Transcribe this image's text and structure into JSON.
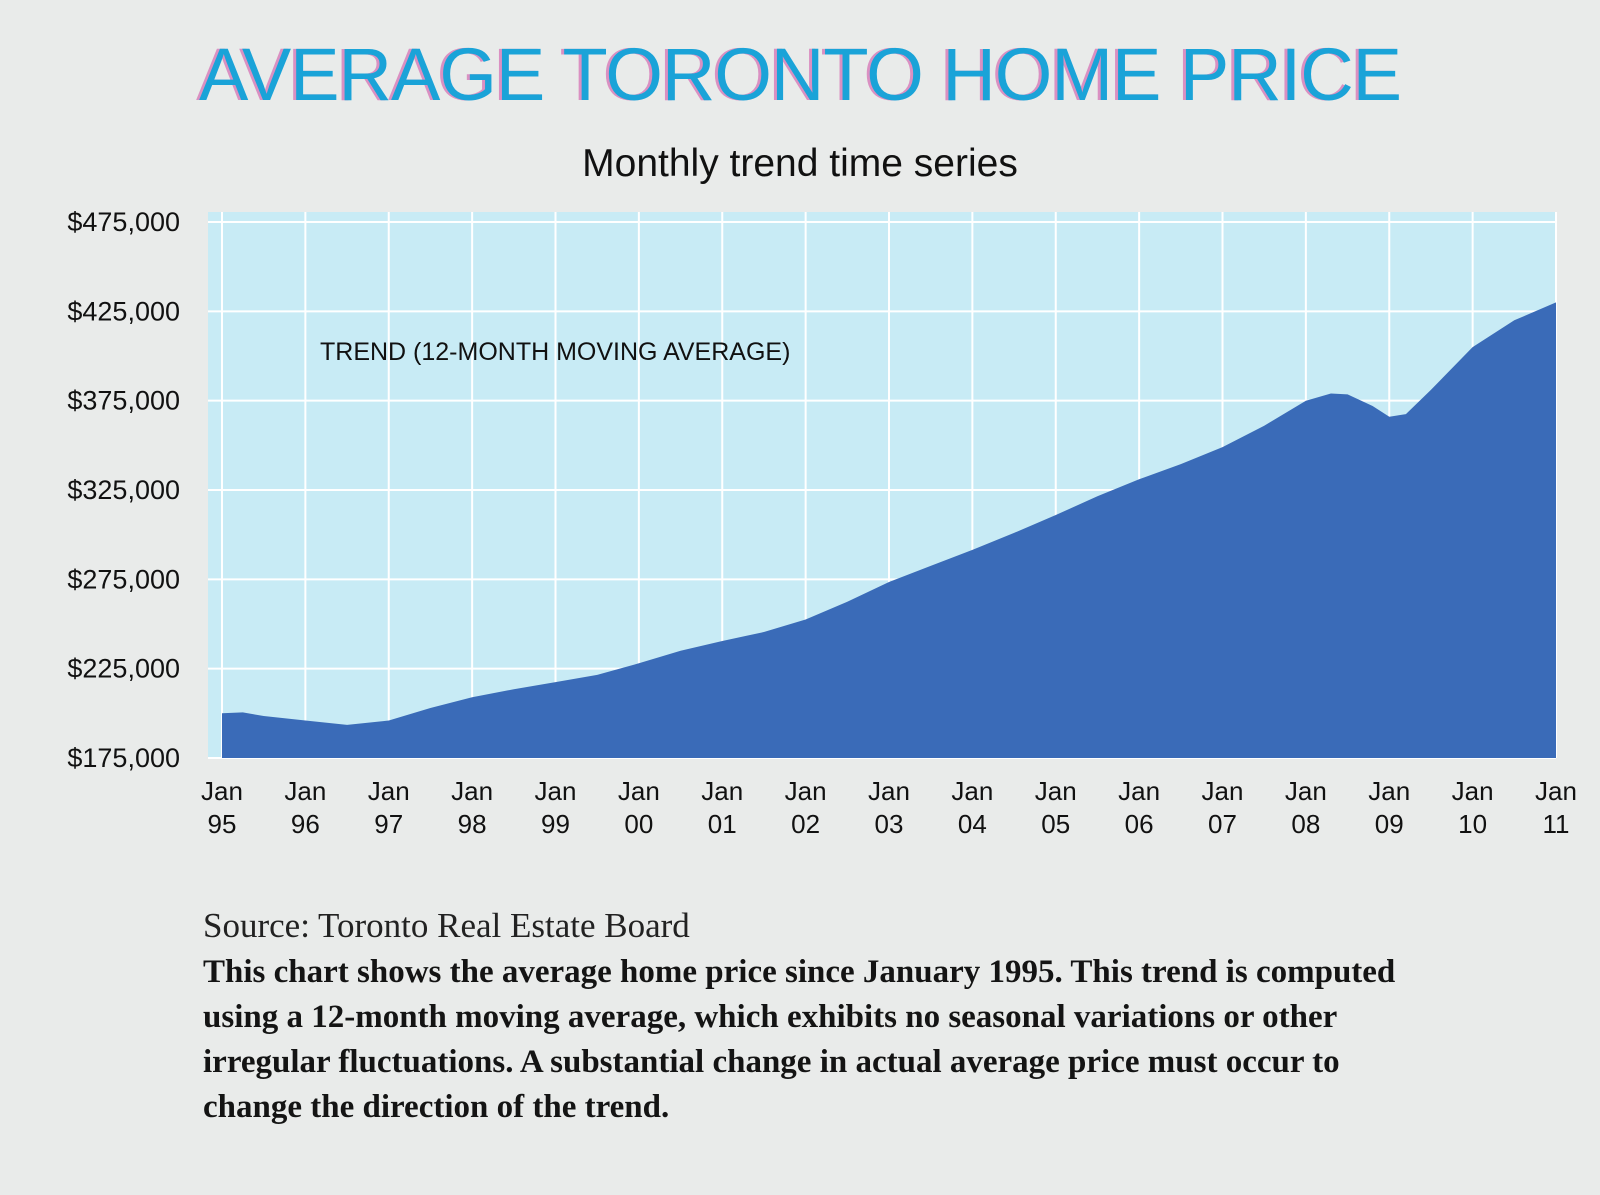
{
  "chart_data": {
    "type": "area",
    "title": "AVERAGE TORONTO HOME PRICE",
    "subtitle": "Monthly trend time series",
    "annotation": "TREND (12-MONTH MOVING AVERAGE)",
    "ylim": [
      175000,
      475000
    ],
    "yticks": [
      {
        "value": 475000,
        "label": "$475,000"
      },
      {
        "value": 425000,
        "label": "$425,000"
      },
      {
        "value": 375000,
        "label": "$375,000"
      },
      {
        "value": 325000,
        "label": "$325,000"
      },
      {
        "value": 275000,
        "label": "$275,000"
      },
      {
        "value": 225000,
        "label": "$225,000"
      },
      {
        "value": 175000,
        "label": "$175,000"
      }
    ],
    "xlim": [
      1995.0,
      2011.0
    ],
    "xticks": [
      {
        "value": 1995,
        "month": "Jan",
        "year": "95"
      },
      {
        "value": 1996,
        "month": "Jan",
        "year": "96"
      },
      {
        "value": 1997,
        "month": "Jan",
        "year": "97"
      },
      {
        "value": 1998,
        "month": "Jan",
        "year": "98"
      },
      {
        "value": 1999,
        "month": "Jan",
        "year": "99"
      },
      {
        "value": 2000,
        "month": "Jan",
        "year": "00"
      },
      {
        "value": 2001,
        "month": "Jan",
        "year": "01"
      },
      {
        "value": 2002,
        "month": "Jan",
        "year": "02"
      },
      {
        "value": 2003,
        "month": "Jan",
        "year": "03"
      },
      {
        "value": 2004,
        "month": "Jan",
        "year": "04"
      },
      {
        "value": 2005,
        "month": "Jan",
        "year": "05"
      },
      {
        "value": 2006,
        "month": "Jan",
        "year": "06"
      },
      {
        "value": 2007,
        "month": "Jan",
        "year": "07"
      },
      {
        "value": 2008,
        "month": "Jan",
        "year": "08"
      },
      {
        "value": 2009,
        "month": "Jan",
        "year": "09"
      },
      {
        "value": 2010,
        "month": "Jan",
        "year": "10"
      },
      {
        "value": 2011,
        "month": "Jan",
        "year": "11"
      }
    ],
    "series": [
      {
        "name": "Average home price (12-month moving average)",
        "x": [
          1995.0,
          1995.25,
          1995.5,
          1996.0,
          1996.5,
          1997.0,
          1997.5,
          1998.0,
          1998.5,
          1999.0,
          1999.5,
          2000.0,
          2000.5,
          2001.0,
          2001.5,
          2002.0,
          2002.5,
          2003.0,
          2003.5,
          2004.0,
          2004.5,
          2005.0,
          2005.5,
          2006.0,
          2006.5,
          2007.0,
          2007.5,
          2008.0,
          2008.3,
          2008.5,
          2008.8,
          2009.0,
          2009.2,
          2009.5,
          2010.0,
          2010.5,
          2011.0
        ],
        "values": [
          200000,
          200500,
          198500,
          196000,
          193500,
          196000,
          203000,
          209000,
          213500,
          217500,
          221500,
          228000,
          235000,
          240500,
          245500,
          252500,
          262500,
          273500,
          282500,
          291500,
          301000,
          311000,
          321500,
          331000,
          339500,
          349000,
          361000,
          375000,
          379000,
          378500,
          372000,
          366000,
          367500,
          381000,
          405000,
          420000,
          430000
        ]
      }
    ],
    "colors": {
      "fill": "#3a6bb8",
      "plot_background": "#c8ebf5",
      "grid": "#ffffff",
      "title": "#1aa3d8",
      "title_shadow": "#cd46a0"
    }
  },
  "source": "Source: Toronto Real Estate Board",
  "caption": "This chart shows the average home price since January 1995. This trend is computed using a 12-month moving average, which exhibits no seasonal variations or other irregular fluctuations. A substantial change in actual average price must occur to change the direction of the trend."
}
